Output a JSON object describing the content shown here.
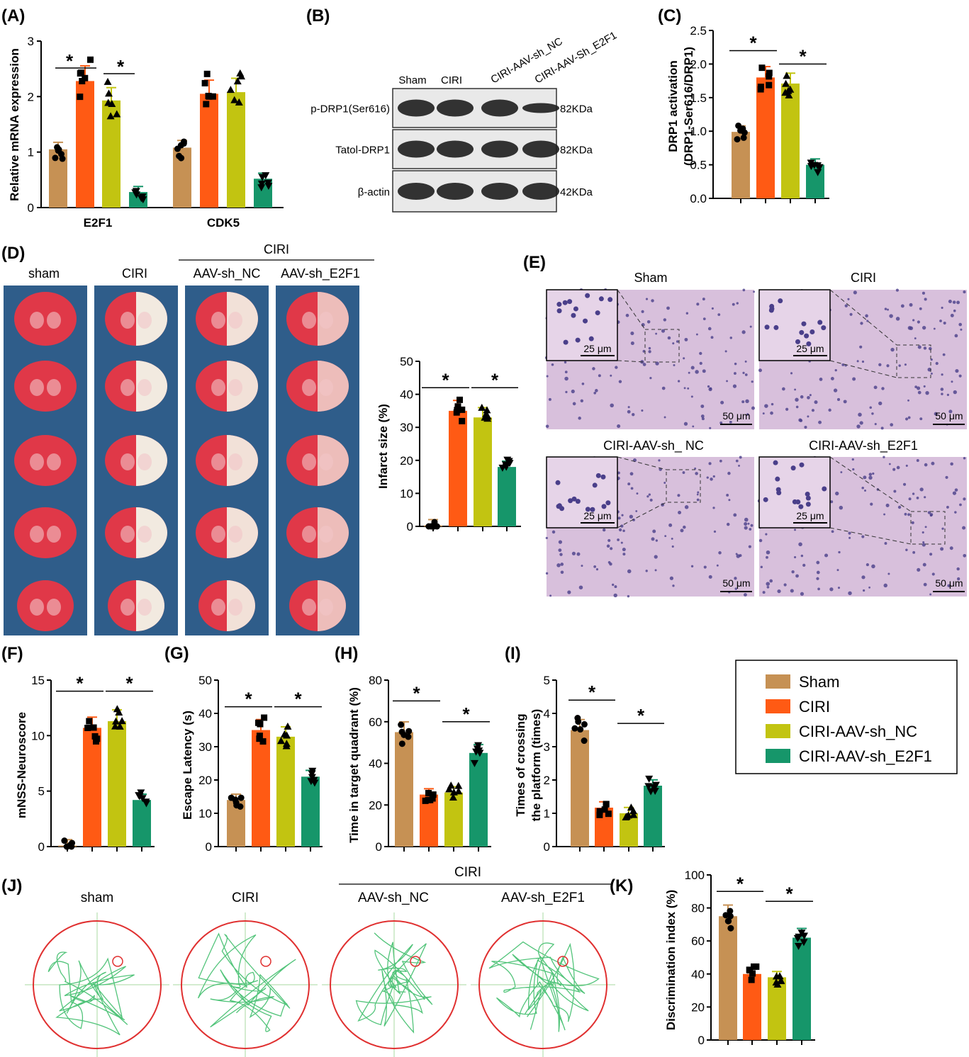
{
  "colors": {
    "sham": "#C69154",
    "ciri": "#FF5A14",
    "nc": "#C2C411",
    "e2f1": "#16966A",
    "red": "#E03030",
    "track": "#52C47A",
    "he_bg": "#D8C0DC",
    "he_dot": "#4A3F8A",
    "blot_bg": "#E9E9E9",
    "blot_band": "#1E1E1E"
  },
  "group_colors": [
    "#C69154",
    "#FF5A14",
    "#C2C411",
    "#16966A"
  ],
  "legend": {
    "items": [
      "Sham",
      "CIRI",
      "CIRI-AAV-sh_NC",
      "CIRI-AAV-sh_E2F1"
    ]
  },
  "panels": {
    "A": {
      "letter": "(A)",
      "ylabel": "Relative mRNA expression",
      "ticks": [
        "0",
        "1",
        "2",
        "3"
      ],
      "groups": [
        "E2F1",
        "CDK5"
      ]
    },
    "B": {
      "letter": "(B)",
      "lanes": [
        "Sham",
        "CIRI",
        "CIRI-AAV-sh_NC",
        "CIRI-AAV-Sh_E2F1"
      ],
      "rows": [
        {
          "label": "p-DRP1(Ser616)",
          "kda": "82KDa"
        },
        {
          "label": "Tatol-DRP1",
          "kda": "82KDa"
        },
        {
          "label": "β-actin",
          "kda": "42KDa"
        }
      ],
      "band_intensity": [
        [
          1.0,
          1.0,
          1.0,
          0.45
        ],
        [
          1.0,
          1.0,
          1.0,
          1.0
        ],
        [
          1.0,
          1.0,
          1.0,
          1.0
        ]
      ]
    },
    "C": {
      "letter": "(C)",
      "ylabel1": "DRP1 activation",
      "ylabel2": "(DRP1-Ser616/DRP1)",
      "ticks": [
        "0.0",
        "0.5",
        "1.0",
        "1.5",
        "2.0",
        "2.5"
      ]
    },
    "D": {
      "letter": "(D)",
      "cols": [
        "sham",
        "CIRI",
        "AAV-sh_NC",
        "AAV-sh_E2F1"
      ],
      "group": "CIRI",
      "ylabel": "Infarct size (%)",
      "ticks": [
        "0",
        "10",
        "20",
        "30",
        "40",
        "50"
      ]
    },
    "E": {
      "letter": "(E)",
      "titles": [
        "Sham",
        "CIRI",
        "CIRI-AAV-sh_ NC",
        "CIRI-AAV-sh_E2F1"
      ],
      "scale_small": "25 μm",
      "scale_big": "50 μm"
    },
    "F": {
      "letter": "(F)",
      "ylabel": "mNSS-Neuroscore",
      "ticks": [
        "0",
        "5",
        "10",
        "15"
      ]
    },
    "G": {
      "letter": "(G)",
      "ylabel": "Escape Latency (s)",
      "ticks": [
        "0",
        "10",
        "20",
        "30",
        "40",
        "50"
      ]
    },
    "H": {
      "letter": "(H)",
      "ylabel": "Time in target quadrant (%)",
      "ticks": [
        "0",
        "20",
        "40",
        "60",
        "80"
      ]
    },
    "I": {
      "letter": "(I)",
      "ylabel1": "Times of crossing",
      "ylabel2": "the platform (times)",
      "ticks": [
        "0",
        "1",
        "2",
        "3",
        "4",
        "5"
      ]
    },
    "J": {
      "letter": "(J)",
      "labels": [
        "sham",
        "CIRI",
        "AAV-sh_NC",
        "AAV-sh_E2F1"
      ],
      "group": "CIRI"
    },
    "K": {
      "letter": "(K)",
      "ylabel": "Discrimination index (%)",
      "ticks": [
        "0",
        "20",
        "40",
        "60",
        "80",
        "100"
      ]
    }
  },
  "star": "*",
  "chart_data": [
    {
      "panel": "A",
      "type": "bar",
      "title": "",
      "ylabel": "Relative mRNA expression",
      "ylim": [
        0,
        3
      ],
      "categories": [
        "E2F1",
        "CDK5"
      ],
      "series": [
        {
          "name": "Sham",
          "values": [
            1.05,
            1.08
          ]
        },
        {
          "name": "CIRI",
          "values": [
            2.28,
            2.05
          ]
        },
        {
          "name": "CIRI-AAV-sh_NC",
          "values": [
            1.93,
            2.08
          ]
        },
        {
          "name": "CIRI-AAV-sh_E2F1",
          "values": [
            0.28,
            0.52
          ]
        }
      ],
      "significance": [
        {
          "between": [
            0,
            1
          ],
          "label": "*"
        },
        {
          "between": [
            2,
            3
          ],
          "label": "*"
        }
      ]
    },
    {
      "panel": "C",
      "type": "bar",
      "ylabel": "DRP1 activation (DRP1-Ser616/DRP1)",
      "ylim": [
        0,
        2.5
      ],
      "categories": [
        "Sham",
        "CIRI",
        "CIRI-AAV-sh_NC",
        "CIRI-AAV-sh_E2F1"
      ],
      "values": [
        0.99,
        1.8,
        1.71,
        0.5
      ]
    },
    {
      "panel": "D",
      "type": "bar",
      "ylabel": "Infarct size (%)",
      "ylim": [
        0,
        50
      ],
      "categories": [
        "Sham",
        "CIRI",
        "CIRI-AAV-sh_NC",
        "CIRI-AAV-sh_E2F1"
      ],
      "values": [
        0.3,
        35,
        33,
        18
      ]
    },
    {
      "panel": "F",
      "type": "bar",
      "ylabel": "mNSS-Neuroscore",
      "ylim": [
        0,
        15
      ],
      "categories": [
        "Sham",
        "CIRI",
        "CIRI-AAV-sh_NC",
        "CIRI-AAV-sh_E2F1"
      ],
      "values": [
        0.1,
        10.7,
        11.3,
        4.2
      ]
    },
    {
      "panel": "G",
      "type": "bar",
      "ylabel": "Escape Latency (s)",
      "ylim": [
        0,
        50
      ],
      "categories": [
        "Sham",
        "CIRI",
        "CIRI-AAV-sh_NC",
        "CIRI-AAV-sh_E2F1"
      ],
      "values": [
        14,
        35,
        33,
        21
      ]
    },
    {
      "panel": "H",
      "type": "bar",
      "ylabel": "Time in target quadrant (%)",
      "ylim": [
        0,
        80
      ],
      "categories": [
        "Sham",
        "CIRI",
        "CIRI-AAV-sh_NC",
        "CIRI-AAV-sh_E2F1"
      ],
      "values": [
        55,
        25,
        26,
        45
      ]
    },
    {
      "panel": "I",
      "type": "bar",
      "ylabel": "Times of crossing the platform (times)",
      "ylim": [
        0,
        5
      ],
      "categories": [
        "Sham",
        "CIRI",
        "CIRI-AAV-sh_NC",
        "CIRI-AAV-sh_E2F1"
      ],
      "values": [
        3.5,
        1.17,
        1.0,
        1.83
      ]
    },
    {
      "panel": "K",
      "type": "bar",
      "ylabel": "Discrimination index (%)",
      "ylim": [
        0,
        100
      ],
      "categories": [
        "Sham",
        "CIRI",
        "CIRI-AAV-sh_NC",
        "CIRI-AAV-sh_E2F1"
      ],
      "values": [
        75,
        40,
        38,
        62
      ]
    }
  ]
}
